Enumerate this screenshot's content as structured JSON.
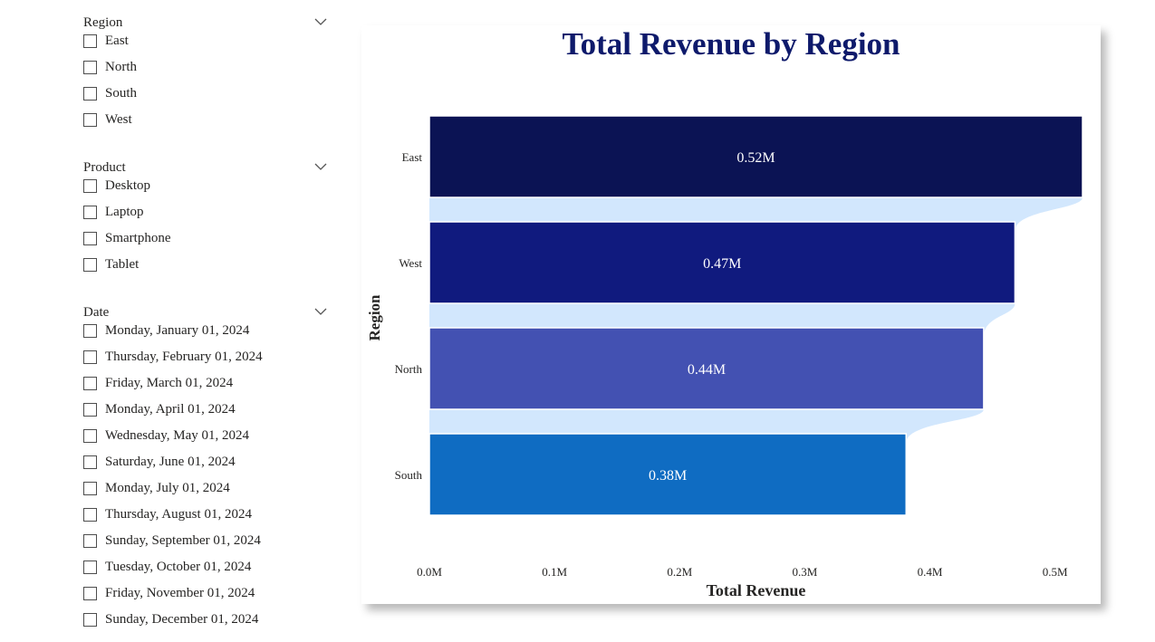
{
  "slicers": [
    {
      "title": "Region",
      "items": [
        "East",
        "North",
        "South",
        "West"
      ]
    },
    {
      "title": "Product",
      "items": [
        "Desktop",
        "Laptop",
        "Smartphone",
        "Tablet"
      ]
    },
    {
      "title": "Date",
      "items": [
        "Monday, January 01, 2024",
        "Thursday, February 01, 2024",
        "Friday, March 01, 2024",
        "Monday, April 01, 2024",
        "Wednesday, May 01, 2024",
        "Saturday, June 01, 2024",
        "Monday, July 01, 2024",
        "Thursday, August 01, 2024",
        "Sunday, September 01, 2024",
        "Tuesday, October 01, 2024",
        "Friday, November 01, 2024",
        "Sunday, December 01, 2024"
      ]
    }
  ],
  "icons": {
    "expand": "chevron-down-icon",
    "checkbox": "checkbox-icon"
  },
  "chart_data": {
    "type": "bar",
    "orientation": "horizontal",
    "title": "Total Revenue by Region",
    "xlabel": "Total Revenue",
    "ylabel": "Region",
    "categories": [
      "East",
      "West",
      "North",
      "South"
    ],
    "values": [
      0.522,
      0.468,
      0.443,
      0.381
    ],
    "data_labels": [
      "0.52M",
      "0.47M",
      "0.44M",
      "0.38M"
    ],
    "x_ticks": [
      "0.0M",
      "0.1M",
      "0.2M",
      "0.3M",
      "0.4M",
      "0.5M"
    ],
    "xlim": [
      0,
      0.522
    ],
    "colors": [
      "#0b1354",
      "#101a7e",
      "#4351b2",
      "#0f6cc2"
    ],
    "ribbon_color": "#d2e7fd",
    "grid": false,
    "legend": "none"
  }
}
